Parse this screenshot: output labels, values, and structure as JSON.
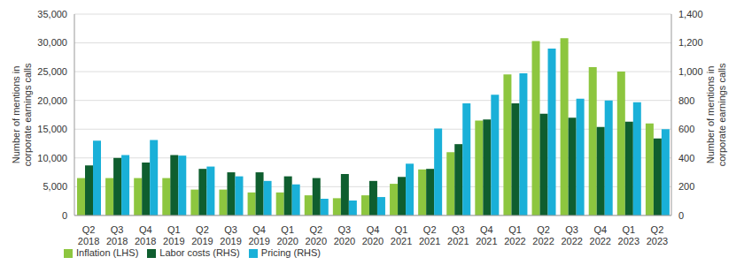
{
  "chart_data": {
    "type": "bar",
    "categories": [
      "Q2 2018",
      "Q3 2018",
      "Q4 2018",
      "Q1 2019",
      "Q2 2019",
      "Q3 2019",
      "Q4 2019",
      "Q1 2020",
      "Q2 2020",
      "Q3 2020",
      "Q4 2020",
      "Q1 2021",
      "Q2 2021",
      "Q3 2021",
      "Q4 2021",
      "Q1 2022",
      "Q2 2022",
      "Q3 2022",
      "Q4 2022",
      "Q1 2023",
      "Q2 2023"
    ],
    "series": [
      {
        "name": "Inflation (LHS)",
        "color": "#8dc63f",
        "values": [
          6500,
          6500,
          6500,
          6500,
          4500,
          4500,
          4000,
          4000,
          3500,
          3000,
          3500,
          5500,
          8000,
          11000,
          16500,
          24500,
          30300,
          30800,
          25800,
          25000,
          16000
        ]
      },
      {
        "name": "Labor costs (RHS)",
        "color": "#0f5e2f",
        "axis": "y2",
        "values": [
          348,
          400,
          368,
          420,
          324,
          300,
          300,
          272,
          260,
          288,
          240,
          268,
          324,
          496,
          668,
          780,
          708,
          680,
          616,
          652,
          536
        ]
      },
      {
        "name": "Pricing (RHS)",
        "color": "#1ab0d8",
        "axis": "y2",
        "values": [
          520,
          420,
          524,
          416,
          340,
          272,
          240,
          216,
          116,
          104,
          128,
          360,
          604,
          780,
          840,
          988,
          1160,
          812,
          800,
          788,
          600
        ]
      }
    ],
    "y_label": "Number of mentions in corporate earnings calls",
    "y2_label": "Number of mentions in corporate earnings calls",
    "ylim": [
      0,
      35000
    ],
    "yticks": [
      0,
      {
        "value": 5000,
        "label": "5,000"
      },
      {
        "value": 10000,
        "label": "10,000"
      },
      {
        "value": 15000,
        "label": "15,000"
      },
      {
        "value": 20000,
        "label": "20,000"
      },
      {
        "value": 25000,
        "label": "25,000"
      },
      {
        "value": 30000,
        "label": "30,000"
      },
      {
        "value": 35000,
        "label": "35,000"
      }
    ],
    "y2lim": [
      0,
      1400
    ],
    "y2ticks": [
      0,
      200,
      400,
      600,
      800,
      {
        "value": 1000,
        "label": "1,000"
      },
      {
        "value": 1200,
        "label": "1,200"
      },
      {
        "value": 1400,
        "label": "1,400"
      }
    ],
    "grid": true,
    "legend": "bottom-left"
  }
}
